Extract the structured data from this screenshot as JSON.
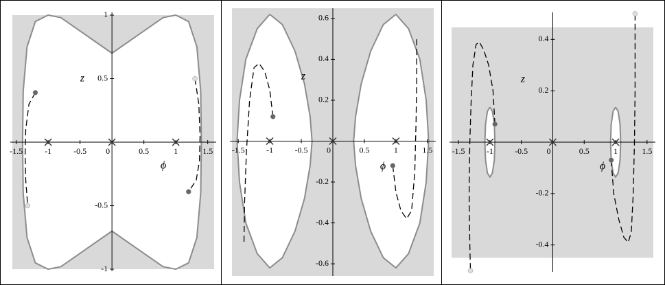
{
  "chart_data": [
    {
      "type": "line",
      "xlabel": "ϕ",
      "ylabel": "z",
      "xlim": [
        -1.56,
        1.6
      ],
      "ylim": [
        -1,
        1
      ],
      "xticks": [
        -1.5,
        -1,
        -0.5,
        0,
        0.5,
        1,
        1.5
      ],
      "yticks": [
        -1,
        -0.5,
        0.5,
        1
      ],
      "series": [
        {
          "style": "region",
          "color": "#d9d9d9",
          "x": [
            -1.56,
            1.6,
            1.6,
            -1.56
          ],
          "values": [
            1,
            1,
            -1,
            -1
          ]
        },
        {
          "style": "boundary",
          "color": "#8c8c8c",
          "x": [
            0,
            0.4,
            0.8,
            1.0,
            1.2,
            1.33,
            1.39,
            1.4,
            1.39,
            1.33,
            1.2,
            1.0,
            0.8,
            0.4,
            0,
            -0.4,
            -0.8,
            -1.0,
            -1.2,
            -1.33,
            -1.39,
            -1.4,
            -1.39,
            -1.33,
            -1.2,
            -1.0,
            -0.8,
            -0.4,
            0
          ],
          "values": [
            0.7,
            0.84,
            0.98,
            1.0,
            0.95,
            0.75,
            0.4,
            0,
            -0.4,
            -0.75,
            -0.95,
            -1.0,
            -0.98,
            -0.84,
            -0.7,
            -0.84,
            -0.98,
            -1.0,
            -0.95,
            -0.75,
            -0.4,
            0,
            0.4,
            0.75,
            0.95,
            1.0,
            0.98,
            0.84,
            0.7
          ]
        },
        {
          "style": "dashed",
          "color": "#000000",
          "x": [
            -1.2,
            -1.3,
            -1.35,
            -1.36,
            -1.35,
            -1.32
          ],
          "values": [
            0.39,
            0.3,
            0.1,
            -0.1,
            -0.3,
            -0.5
          ]
        },
        {
          "style": "dashed",
          "color": "#000000",
          "x": [
            1.3,
            1.36,
            1.38,
            1.37,
            1.32,
            1.2
          ],
          "values": [
            0.5,
            0.3,
            0.05,
            -0.15,
            -0.3,
            -0.39
          ]
        },
        {
          "style": "dot",
          "color": "#666666",
          "x": [
            -1.2,
            1.2
          ],
          "values": [
            0.39,
            -0.39
          ]
        },
        {
          "style": "dot",
          "color": "#dddddd",
          "x": [
            -1.32,
            1.3
          ],
          "values": [
            -0.5,
            0.5
          ]
        },
        {
          "style": "cross",
          "color": "#333333",
          "x": [
            -1,
            0,
            1
          ],
          "values": [
            0,
            0,
            0
          ]
        }
      ]
    },
    {
      "type": "line",
      "xlabel": "ϕ",
      "ylabel": "z",
      "xlim": [
        -1.6,
        1.6
      ],
      "ylim": [
        -0.66,
        0.65
      ],
      "xticks": [
        -1.5,
        -1,
        -0.5,
        0,
        0.5,
        1,
        1.5
      ],
      "yticks": [
        -0.6,
        -0.4,
        -0.2,
        0.2,
        0.4,
        0.6
      ],
      "series": [
        {
          "style": "region",
          "color": "#d9d9d9",
          "x": [
            -1.6,
            1.6,
            1.6,
            -1.6
          ],
          "values": [
            0.65,
            0.65,
            -0.66,
            -0.66
          ]
        },
        {
          "style": "boundary",
          "color": "#8c8c8c",
          "x": [
            -1.0,
            -0.8,
            -0.6,
            -0.45,
            -0.36,
            -0.33,
            -0.36,
            -0.45,
            -0.6,
            -0.8,
            -1.0,
            -1.2,
            -1.38,
            -1.48,
            -1.52,
            -1.48,
            -1.38,
            -1.2,
            -1.0
          ],
          "values": [
            0.62,
            0.57,
            0.44,
            0.28,
            0.12,
            0,
            -0.12,
            -0.28,
            -0.44,
            -0.57,
            -0.62,
            -0.55,
            -0.4,
            -0.2,
            0,
            0.2,
            0.4,
            0.55,
            0.62
          ]
        },
        {
          "style": "boundary",
          "color": "#8c8c8c",
          "x": [
            1.0,
            0.8,
            0.6,
            0.45,
            0.36,
            0.33,
            0.36,
            0.45,
            0.6,
            0.8,
            1.0,
            1.2,
            1.38,
            1.48,
            1.52,
            1.48,
            1.38,
            1.2,
            1.0
          ],
          "values": [
            0.62,
            0.57,
            0.44,
            0.28,
            0.12,
            0,
            -0.12,
            -0.28,
            -0.44,
            -0.57,
            -0.62,
            -0.55,
            -0.4,
            -0.2,
            0,
            0.2,
            0.4,
            0.55,
            0.62
          ]
        },
        {
          "style": "dashed",
          "color": "#000000",
          "x": [
            -0.95,
            -1.0,
            -1.08,
            -1.17,
            -1.25,
            -1.32,
            -1.37,
            -1.4,
            -1.41
          ],
          "values": [
            0.12,
            0.25,
            0.34,
            0.38,
            0.36,
            0.2,
            -0.05,
            -0.3,
            -0.5
          ]
        },
        {
          "style": "dashed",
          "color": "#000000",
          "x": [
            0.95,
            1.0,
            1.08,
            1.17,
            1.25,
            1.3,
            1.32,
            1.33,
            1.33
          ],
          "values": [
            -0.12,
            -0.25,
            -0.34,
            -0.38,
            -0.34,
            -0.15,
            0.1,
            0.3,
            0.5
          ]
        },
        {
          "style": "dot",
          "color": "#666666",
          "x": [
            -0.95,
            0.95
          ],
          "values": [
            0.12,
            -0.12
          ]
        },
        {
          "style": "cross",
          "color": "#333333",
          "x": [
            -1,
            0,
            1
          ],
          "values": [
            0,
            0,
            0
          ]
        }
      ]
    },
    {
      "type": "line",
      "xlabel": "ϕ",
      "ylabel": "z",
      "xlim": [
        -1.61,
        1.6
      ],
      "ylim": [
        -0.505,
        0.505
      ],
      "xticks": [
        -1.5,
        -1,
        -0.5,
        0,
        0.5,
        1,
        1.5
      ],
      "yticks": [
        -0.4,
        -0.2,
        0.2,
        0.4
      ],
      "series": [
        {
          "style": "region",
          "color": "#d9d9d9",
          "x": [
            -1.61,
            1.6,
            1.6,
            -1.61
          ],
          "values": [
            0.447,
            0.447,
            -0.45,
            -0.45
          ]
        },
        {
          "style": "boundary",
          "color": "#8c8c8c",
          "x": [
            -1.0,
            -0.96,
            -0.93,
            -0.92,
            -0.93,
            -0.96,
            -1.0,
            -1.04,
            -1.07,
            -1.08,
            -1.07,
            -1.04,
            -1.0
          ],
          "values": [
            0.136,
            0.12,
            0.07,
            0,
            -0.07,
            -0.12,
            -0.136,
            -0.12,
            -0.07,
            0,
            0.07,
            0.12,
            0.136
          ]
        },
        {
          "style": "boundary",
          "color": "#8c8c8c",
          "x": [
            1.0,
            1.04,
            1.07,
            1.08,
            1.07,
            1.04,
            1.0,
            0.96,
            0.93,
            0.92,
            0.93,
            0.96,
            1.0
          ],
          "values": [
            0.136,
            0.12,
            0.07,
            0,
            -0.07,
            -0.12,
            -0.136,
            -0.12,
            -0.07,
            0,
            0.07,
            0.12,
            0.136
          ]
        },
        {
          "style": "dashed",
          "color": "#000000",
          "x": [
            -0.92,
            -0.95,
            -1.02,
            -1.1,
            -1.17,
            -1.22,
            -1.27,
            -1.3,
            -1.32,
            -1.33,
            -1.32,
            -1.31
          ],
          "values": [
            0.07,
            0.2,
            0.3,
            0.36,
            0.39,
            0.38,
            0.3,
            0.15,
            0,
            -0.2,
            -0.4,
            -0.5
          ]
        },
        {
          "style": "dashed",
          "color": "#000000",
          "x": [
            0.93,
            0.97,
            1.05,
            1.13,
            1.2,
            1.25,
            1.28,
            1.3,
            1.31,
            1.31,
            1.31
          ],
          "values": [
            -0.07,
            -0.2,
            -0.3,
            -0.37,
            -0.39,
            -0.35,
            -0.2,
            0,
            0.2,
            0.4,
            0.5
          ]
        },
        {
          "style": "dot",
          "color": "#666666",
          "x": [
            -0.92,
            0.93
          ],
          "values": [
            0.07,
            -0.07
          ]
        },
        {
          "style": "dot",
          "color": "#dddddd",
          "x": [
            -1.31,
            1.31
          ],
          "values": [
            -0.5,
            0.5
          ]
        },
        {
          "style": "cross",
          "color": "#333333",
          "x": [
            -1,
            0,
            1
          ],
          "values": [
            0,
            0,
            0
          ]
        }
      ]
    }
  ]
}
